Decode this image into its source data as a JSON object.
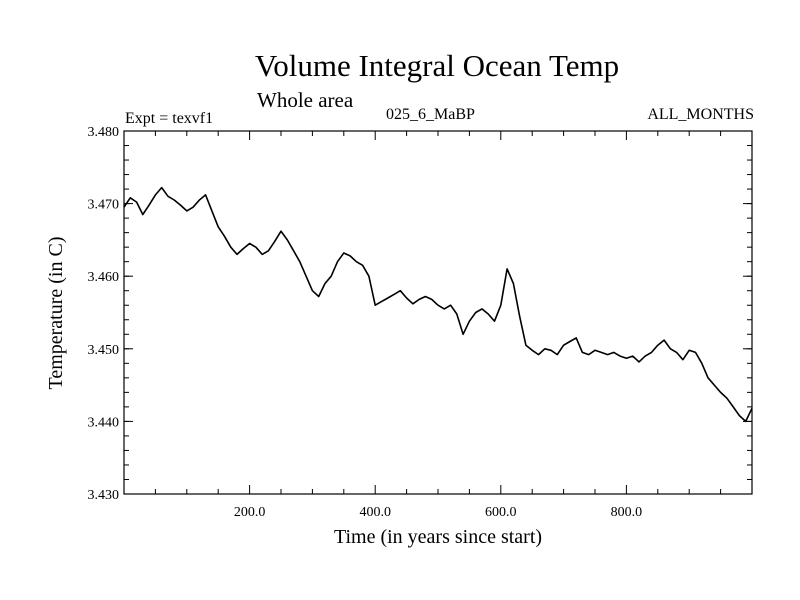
{
  "chart_data": {
    "type": "line",
    "title": "Volume Integral Ocean Temp",
    "subtitle": "Whole area",
    "header_left": "Expt = texvf1",
    "header_center": "025_6_MaBP",
    "header_right": "ALL_MONTHS",
    "xlabel": "Time (in years since start)",
    "ylabel": "Temperature (in C)",
    "xlim": [
      0,
      1000
    ],
    "ylim": [
      3.43,
      3.48
    ],
    "x_ticks": [
      200,
      400,
      600,
      800
    ],
    "x_tick_labels": [
      "200.0",
      "400.0",
      "600.0",
      "800.0"
    ],
    "y_ticks": [
      3.43,
      3.44,
      3.45,
      3.46,
      3.47,
      3.48
    ],
    "y_tick_labels": [
      "3.430",
      "3.440",
      "3.450",
      "3.460",
      "3.470",
      "3.480"
    ],
    "series": [
      {
        "name": "Volume Integral Ocean Temp",
        "color": "#000000",
        "x": [
          0,
          10,
          20,
          30,
          40,
          50,
          60,
          70,
          80,
          90,
          100,
          110,
          120,
          130,
          140,
          150,
          160,
          170,
          180,
          190,
          200,
          210,
          220,
          230,
          240,
          250,
          260,
          270,
          280,
          290,
          300,
          310,
          320,
          330,
          340,
          350,
          360,
          370,
          380,
          390,
          400,
          410,
          420,
          430,
          440,
          450,
          460,
          470,
          480,
          490,
          500,
          510,
          520,
          530,
          540,
          550,
          560,
          570,
          580,
          590,
          600,
          610,
          620,
          630,
          640,
          650,
          660,
          670,
          680,
          690,
          700,
          710,
          720,
          730,
          740,
          750,
          760,
          770,
          780,
          790,
          800,
          810,
          820,
          830,
          840,
          850,
          860,
          870,
          880,
          890,
          900,
          910,
          920,
          930,
          940,
          950,
          960,
          970,
          980,
          990,
          1000
        ],
        "values": [
          3.4695,
          3.4708,
          3.4702,
          3.4685,
          3.4698,
          3.4712,
          3.4722,
          3.471,
          3.4705,
          3.4698,
          3.469,
          3.4695,
          3.4705,
          3.4712,
          3.469,
          3.4668,
          3.4655,
          3.464,
          3.463,
          3.4638,
          3.4645,
          3.464,
          3.463,
          3.4635,
          3.4648,
          3.4662,
          3.465,
          3.4635,
          3.462,
          3.46,
          3.458,
          3.4572,
          3.459,
          3.46,
          3.462,
          3.4632,
          3.4628,
          3.462,
          3.4615,
          3.46,
          3.456,
          3.4565,
          3.457,
          3.4575,
          3.458,
          3.457,
          3.4562,
          3.4568,
          3.4572,
          3.4568,
          3.456,
          3.4555,
          3.456,
          3.4548,
          3.452,
          3.4538,
          3.455,
          3.4555,
          3.4548,
          3.4538,
          3.456,
          3.461,
          3.459,
          3.4545,
          3.4505,
          3.4498,
          3.4492,
          3.45,
          3.4498,
          3.4492,
          3.4505,
          3.451,
          3.4515,
          3.4495,
          3.4492,
          3.4498,
          3.4495,
          3.4492,
          3.4495,
          3.449,
          3.4487,
          3.449,
          3.4482,
          3.449,
          3.4495,
          3.4505,
          3.4512,
          3.45,
          3.4495,
          3.4485,
          3.4498,
          3.4495,
          3.448,
          3.446,
          3.445,
          3.444,
          3.4432,
          3.442,
          3.4408,
          3.44,
          3.4418
        ]
      }
    ]
  }
}
